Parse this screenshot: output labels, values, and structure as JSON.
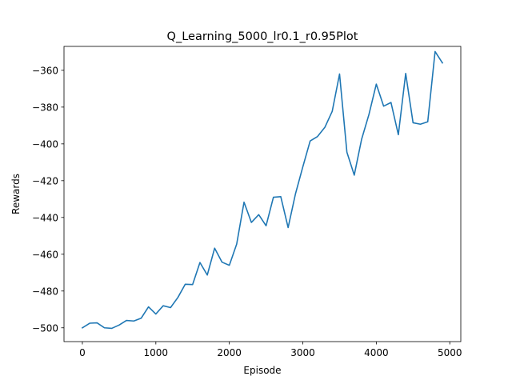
{
  "chart_data": {
    "type": "line",
    "title": "Q_Learning_5000_lr0.1_r0.95Plot",
    "xlabel": "Episode",
    "ylabel": "Rewards",
    "xlim": [
      -250,
      5150
    ],
    "ylim": [
      -507.5,
      -347
    ],
    "xticks": [
      0,
      1000,
      2000,
      3000,
      4000,
      5000
    ],
    "yticks": [
      -500,
      -480,
      -460,
      -440,
      -420,
      -400,
      -380,
      -360
    ],
    "grid": false,
    "series": [
      {
        "color": "#1f77b4",
        "x": [
          0,
          100,
          200,
          300,
          400,
          500,
          600,
          700,
          800,
          900,
          1000,
          1100,
          1200,
          1300,
          1400,
          1500,
          1600,
          1700,
          1800,
          1900,
          2000,
          2100,
          2200,
          2300,
          2400,
          2500,
          2600,
          2700,
          2800,
          2900,
          3000,
          3100,
          3200,
          3300,
          3400,
          3500,
          3600,
          3700,
          3800,
          3900,
          4000,
          4100,
          4200,
          4300,
          4400,
          4500,
          4600,
          4700,
          4800,
          4900
        ],
        "y": [
          -500.0,
          -497.5,
          -497.3,
          -500.0,
          -500.3,
          -498.5,
          -496.0,
          -496.3,
          -494.8,
          -488.6,
          -492.5,
          -488.0,
          -489.0,
          -483.5,
          -476.3,
          -476.5,
          -464.5,
          -471.3,
          -456.7,
          -464.3,
          -466.0,
          -454.5,
          -431.7,
          -442.7,
          -438.5,
          -444.5,
          -429.0,
          -428.7,
          -445.5,
          -427.2,
          -412.5,
          -398.4,
          -396.0,
          -391.0,
          -382.3,
          -362.0,
          -404.5,
          -417.0,
          -397.5,
          -384.0,
          -367.5,
          -379.5,
          -377.5,
          -395.0,
          -361.7,
          -388.5,
          -389.3,
          -388.0,
          -349.8,
          -356.0
        ]
      }
    ]
  }
}
